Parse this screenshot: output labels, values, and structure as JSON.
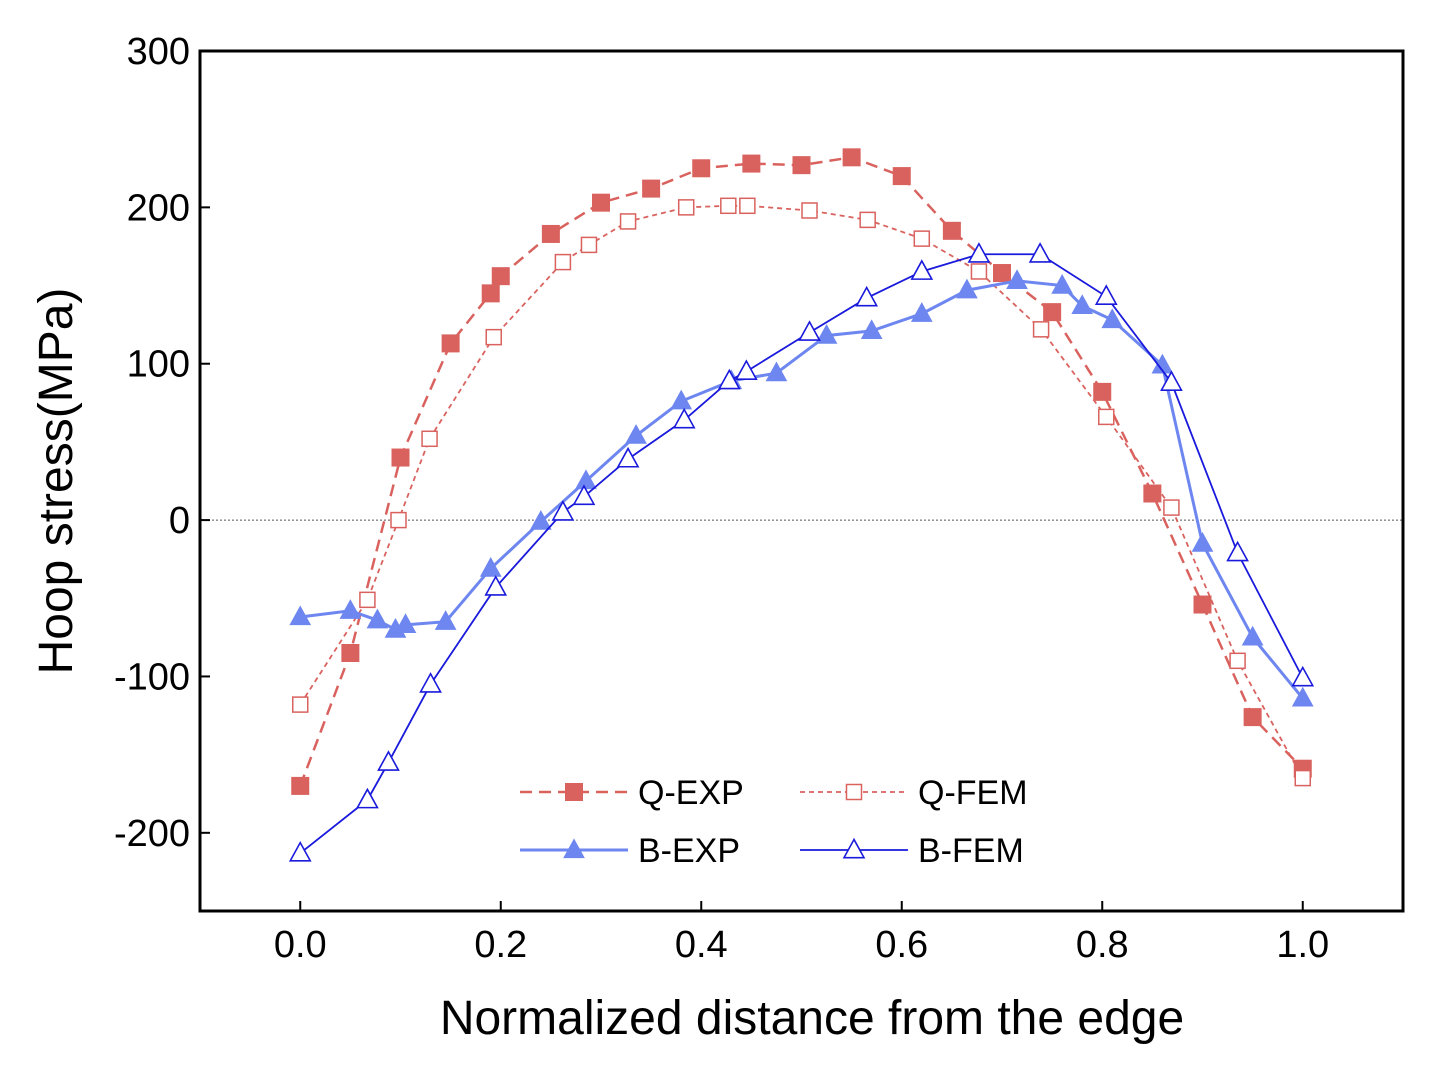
{
  "chart_data": {
    "type": "line",
    "xlabel": "Normalized distance from the edge",
    "ylabel": "Hoop stress(MPa)",
    "xlim": [
      -0.1,
      1.1
    ],
    "ylim": [
      -250,
      300
    ],
    "xticks": [
      0.0,
      0.2,
      0.4,
      0.6,
      0.8,
      1.0
    ],
    "xtick_labels": [
      "0.0",
      "0.2",
      "0.4",
      "0.6",
      "0.8",
      "1.0"
    ],
    "yticks": [
      -200,
      -100,
      0,
      100,
      200,
      300
    ],
    "ytick_labels": [
      "-200",
      "-100",
      "0",
      "100",
      "200",
      "300"
    ],
    "zero_line": true,
    "grid": false,
    "legend_position": "bottom-center",
    "series": [
      {
        "name": "Q-EXP",
        "color": "#d9625e",
        "line_style": "dashed",
        "marker": "filled-square",
        "x": [
          0.0,
          0.05,
          0.1,
          0.15,
          0.19,
          0.2,
          0.25,
          0.3,
          0.35,
          0.4,
          0.45,
          0.5,
          0.55,
          0.6,
          0.65,
          0.7,
          0.75,
          0.8,
          0.85,
          0.9,
          0.95,
          1.0
        ],
        "y": [
          -170,
          -85,
          40,
          113,
          145,
          156,
          183,
          203,
          212,
          225,
          228,
          227,
          232,
          220,
          185,
          158,
          133,
          82,
          17,
          -54,
          -126,
          -159
        ]
      },
      {
        "name": "Q-FEM",
        "color": "#d9625e",
        "line_style": "short-dashed",
        "marker": "open-square",
        "x": [
          0.0,
          0.067,
          0.098,
          0.129,
          0.193,
          0.262,
          0.288,
          0.327,
          0.385,
          0.427,
          0.446,
          0.508,
          0.566,
          0.62,
          0.677,
          0.739,
          0.804,
          0.869,
          0.935,
          1.0
        ],
        "y": [
          -118,
          -51,
          0,
          52,
          117,
          165,
          176,
          191,
          200,
          201,
          201,
          198,
          192,
          180,
          159,
          122,
          66,
          8,
          -90,
          -165
        ]
      },
      {
        "name": "B-EXP",
        "color": "#6d86f0",
        "line_style": "solid",
        "marker": "filled-triangle",
        "x": [
          0.0,
          0.05,
          0.077,
          0.095,
          0.105,
          0.145,
          0.19,
          0.24,
          0.285,
          0.335,
          0.38,
          0.43,
          0.475,
          0.525,
          0.57,
          0.62,
          0.665,
          0.715,
          0.76,
          0.78,
          0.81,
          0.86,
          0.9,
          0.95,
          1.0
        ],
        "y": [
          -62,
          -58,
          -64,
          -70,
          -67,
          -65,
          -31,
          -1,
          25,
          54,
          76,
          89,
          94,
          118,
          121,
          132,
          147,
          153,
          150,
          137,
          128,
          99,
          -15,
          -75,
          -114
        ]
      },
      {
        "name": "B-FEM",
        "color": "#1a1adc",
        "line_style": "solid",
        "marker": "open-triangle",
        "x": [
          0.0,
          0.067,
          0.088,
          0.13,
          0.195,
          0.262,
          0.283,
          0.327,
          0.383,
          0.428,
          0.445,
          0.508,
          0.565,
          0.62,
          0.677,
          0.738,
          0.804,
          0.869,
          0.935,
          1.0
        ],
        "y": [
          -213,
          -179,
          -155,
          -105,
          -43,
          5,
          15,
          39,
          64,
          89,
          95,
          120,
          142,
          159,
          170,
          170,
          143,
          88,
          -21,
          -101
        ]
      }
    ]
  }
}
